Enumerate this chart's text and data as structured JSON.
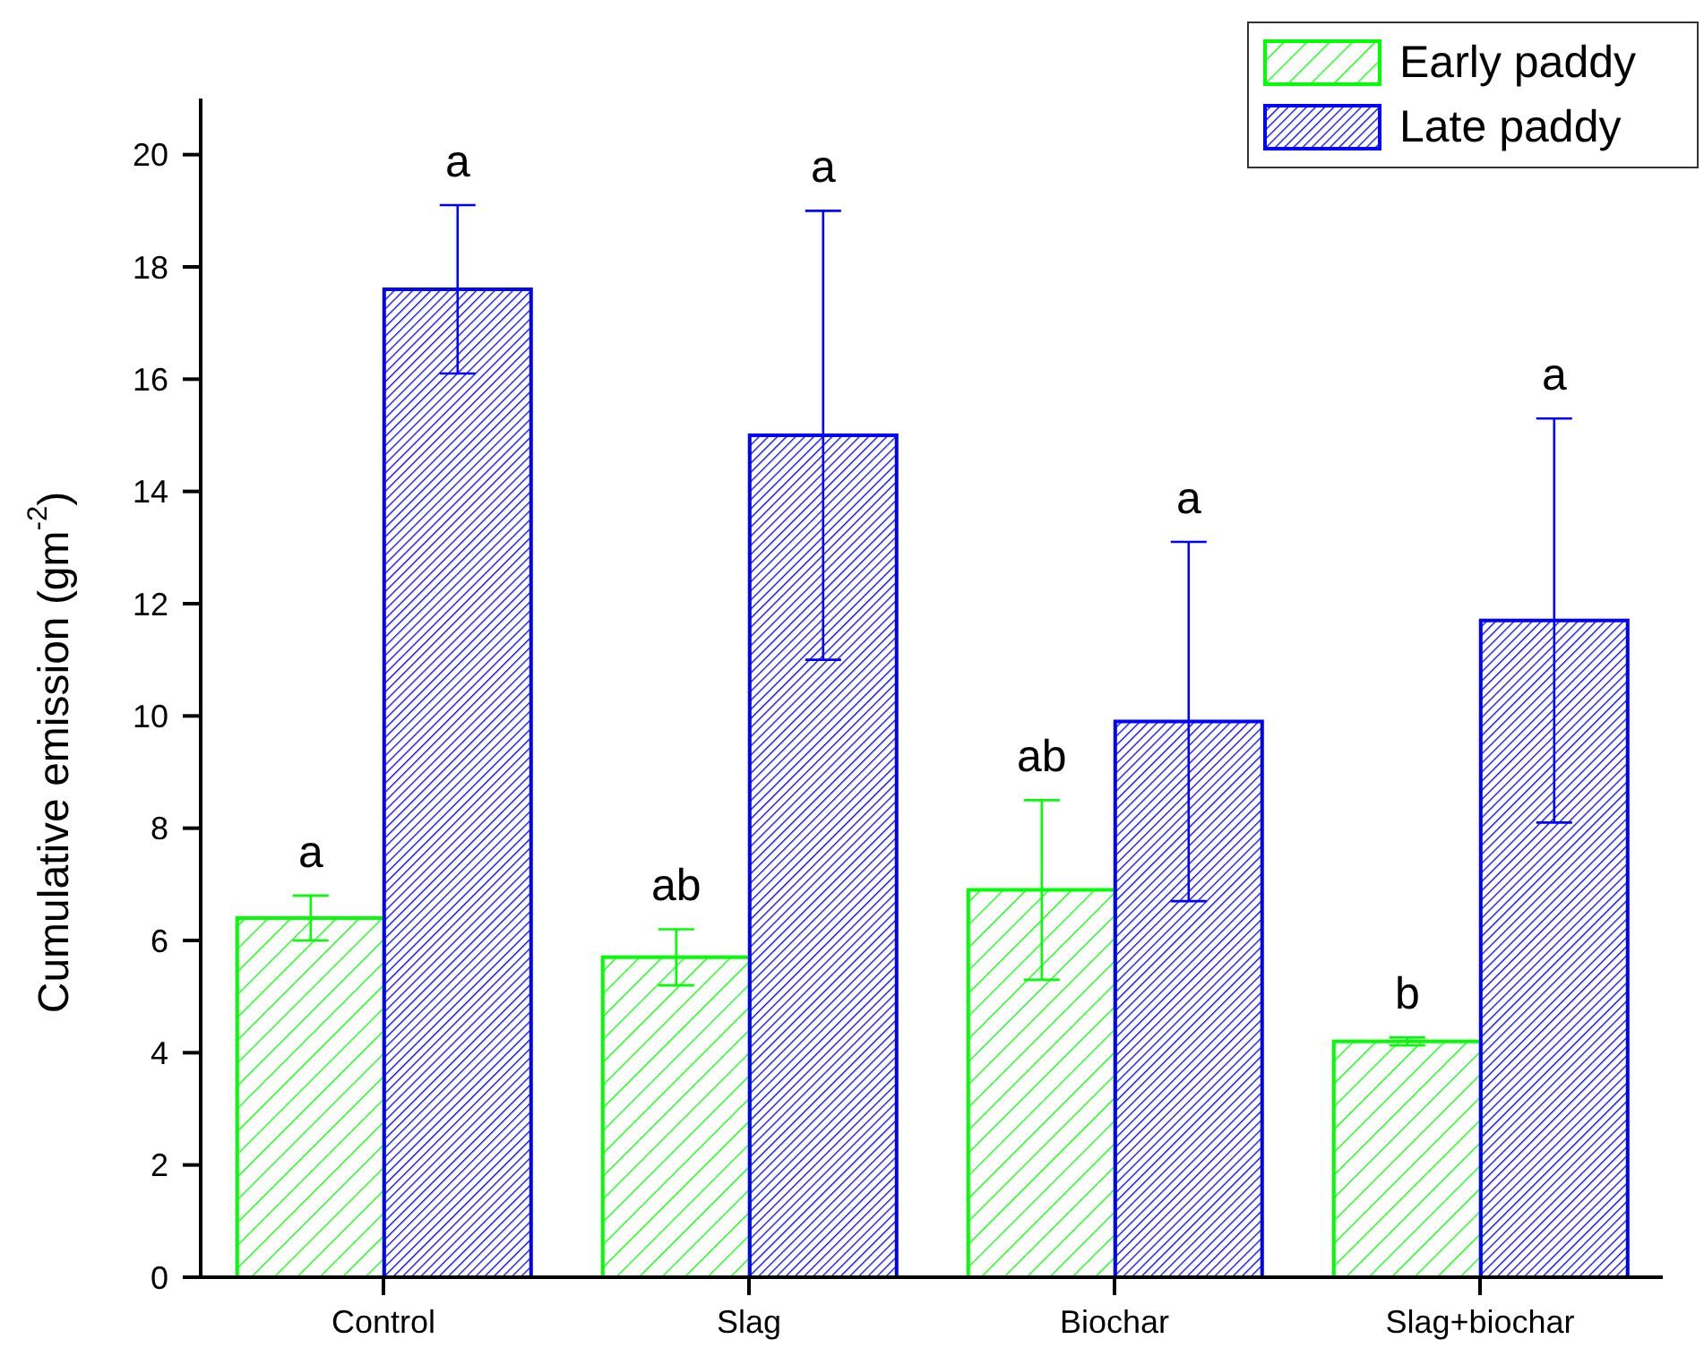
{
  "chart_data": {
    "type": "bar",
    "ylabel": "Cumulative emission (gm$^{-2}$)",
    "categories": [
      "Control",
      "Slag",
      "Biochar",
      "Slag+biochar"
    ],
    "series": [
      {
        "name": "Early paddy",
        "color": "#00ff00",
        "values": [
          6.4,
          5.7,
          6.9,
          4.2
        ],
        "errors": [
          0.4,
          0.5,
          1.6,
          0.07
        ]
      },
      {
        "name": "Late paddy",
        "color": "#0000ff",
        "values": [
          17.6,
          15.0,
          9.9,
          11.7
        ],
        "errors": [
          1.5,
          4.0,
          3.2,
          3.6
        ]
      }
    ],
    "ylim": [
      0,
      21
    ],
    "yticks": [
      0,
      2,
      4,
      6,
      8,
      10,
      12,
      14,
      16,
      18,
      20
    ],
    "legend": "top right",
    "annotations": [
      "a",
      "a",
      "ab",
      "a",
      "ab",
      "a",
      "b",
      "a"
    ]
  }
}
